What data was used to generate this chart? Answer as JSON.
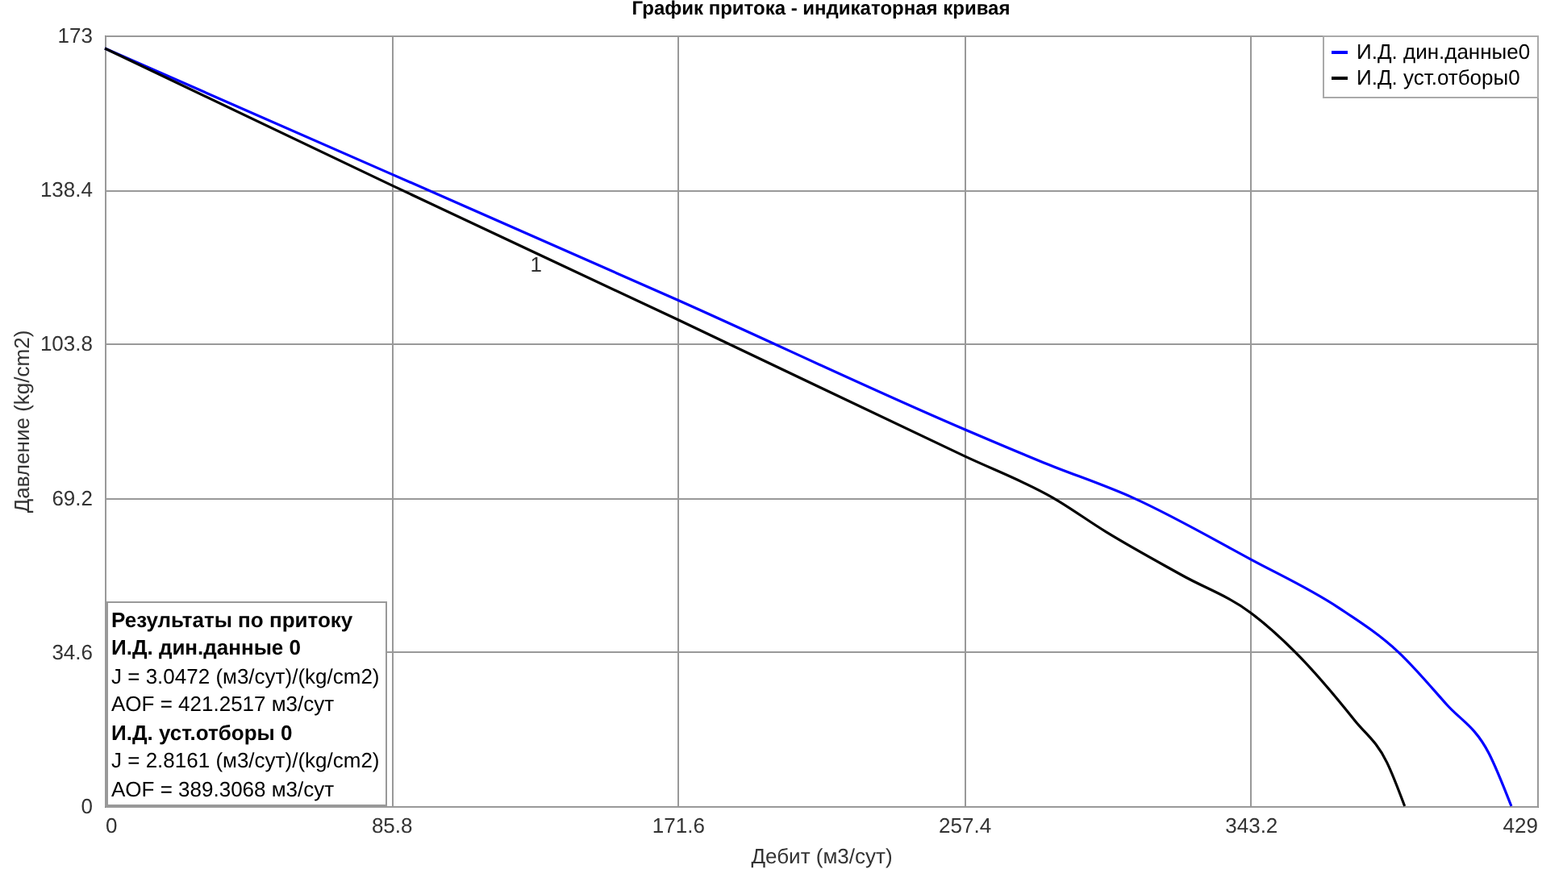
{
  "chart_data": {
    "type": "line",
    "title": "График притока - индикаторная кривая",
    "xlabel": "Дебит (м3/сут)",
    "ylabel": "Давление (kg/cm2)",
    "xlim": [
      0,
      429
    ],
    "xticks": [
      0,
      85.8,
      171.6,
      257.4,
      343.2,
      429
    ],
    "ylim": [
      0,
      173
    ],
    "yticks": [
      0,
      34.6,
      69.2,
      103.8,
      138.4,
      173
    ],
    "grid": true,
    "legend": "top right",
    "marker": "none",
    "line_style": "solid",
    "series": [
      {
        "name": "И.Д. дин.данные0",
        "color": "#0000ff",
        "x": [
          0,
          85.8,
          171.6,
          257.4,
          281.2,
          308,
          343.2,
          369.6,
          387.4,
          401.9,
          414.5,
          421.25
        ],
        "values": [
          170.1,
          141.9,
          113.6,
          84.6,
          77.1,
          69.2,
          55.4,
          44.5,
          34.6,
          22.8,
          11.9,
          0
        ]
      },
      {
        "name": "И.Д. уст.отборы0",
        "color": "#000000",
        "x": [
          0,
          85.8,
          171.6,
          257.4,
          284,
          300,
          322.7,
          343.2,
          356.5,
          374.4,
          384,
          389.3068
        ],
        "values": [
          170.1,
          139.4,
          109.2,
          78.6,
          69.2,
          61.5,
          51.8,
          43.4,
          34.6,
          19.2,
          9.8,
          0
        ]
      }
    ],
    "annotations": [
      "1",
      "Результаты по притоку",
      "И.Д. дин.данные 0",
      "J = 3.0472 (м3/сут)/(kg/cm2)",
      "AOF = 421.2517 м3/сут",
      "И.Д. уст.отборы 0",
      "J = 2.8161 (м3/сут)/(kg/cm2)",
      "AOF = 389.3068 м3/сут"
    ]
  }
}
